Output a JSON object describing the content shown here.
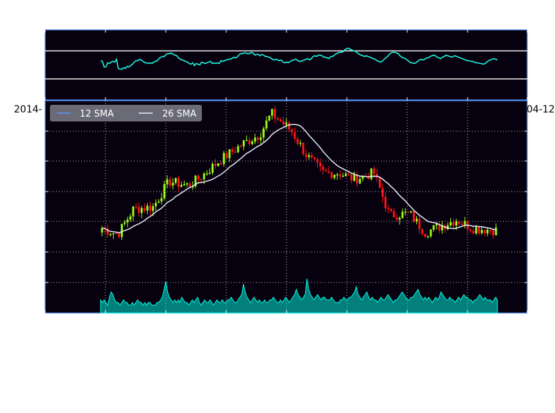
{
  "colors": {
    "figure_bg": "#ffffff",
    "axes_bg": "#07000e",
    "axes_edge": "#5998ff",
    "grid": "#ffffff",
    "rsi_line": "#1ef5dc",
    "rsi_bands": "#ffffff",
    "sma12": "#5998ff",
    "sma26": "#e1edf9",
    "candle_up": "#9eff15",
    "candle_down": "#ff1717",
    "volume_fill": "#00ffe8",
    "volume_fill_alpha": 0.5,
    "legend_bg": "#6b6b78"
  },
  "x_axis": {
    "left_label": "2014-",
    "right_label": "04-12"
  },
  "chart_data": [
    {
      "type": "line",
      "name": "rsi-panel",
      "ylim": [
        0,
        100
      ],
      "bands": [
        70,
        30
      ],
      "grid": false,
      "values": [
        56,
        55,
        47,
        47,
        53,
        52,
        54,
        55,
        54,
        58,
        45,
        44,
        44,
        46,
        45,
        48,
        47,
        49,
        51,
        54,
        56,
        56,
        58,
        57,
        55,
        53,
        53,
        52,
        53,
        52,
        54,
        55,
        56,
        59,
        61,
        62,
        62,
        65,
        66,
        66,
        67,
        65,
        64,
        63,
        60,
        58,
        57,
        56,
        55,
        54,
        52,
        51,
        53,
        49,
        52,
        51,
        50,
        54,
        53,
        52,
        53,
        54,
        55,
        52,
        53,
        52,
        53,
        52,
        56,
        55,
        56,
        57,
        58,
        58,
        59,
        61,
        60,
        61,
        64,
        66,
        66,
        67,
        67,
        66,
        66,
        68,
        67,
        64,
        65,
        65,
        63,
        65,
        64,
        62,
        62,
        61,
        60,
        58,
        57,
        58,
        57,
        56,
        57,
        54,
        53,
        54,
        53,
        55,
        56,
        57,
        58,
        57,
        55,
        55,
        56,
        57,
        58,
        59,
        57,
        59,
        62,
        63,
        62,
        64,
        64,
        63,
        61,
        61,
        60,
        59,
        62,
        62,
        64,
        66,
        67,
        68,
        68,
        69,
        72,
        73,
        74,
        72,
        71,
        70,
        69,
        67,
        65,
        64,
        63,
        62,
        63,
        62,
        61,
        60,
        59,
        58,
        56,
        55,
        54,
        55,
        58,
        60,
        62,
        65,
        67,
        68,
        68,
        67,
        66,
        63,
        61,
        60,
        59,
        57,
        55,
        53,
        53,
        52,
        53,
        55,
        57,
        58,
        57,
        58,
        60,
        60,
        62,
        63,
        64,
        63,
        61,
        60,
        59,
        61,
        62,
        64,
        63,
        62,
        61,
        62,
        63,
        62,
        61,
        60,
        59,
        58,
        57,
        56,
        56,
        55,
        55,
        54,
        53,
        53,
        52,
        52,
        51,
        52,
        54,
        56,
        57,
        58,
        59,
        58,
        57
      ]
    },
    {
      "type": "candlestick",
      "name": "price-panel",
      "ylim": [
        0,
        10
      ],
      "grid": true,
      "series": [
        {
          "name": "12 SMA",
          "values": []
        },
        {
          "name": "26 SMA",
          "values": []
        }
      ],
      "legend_position": "upper-left"
    },
    {
      "type": "area",
      "name": "volume-overlay",
      "values": [
        5,
        4,
        5,
        4,
        3,
        6,
        8,
        7,
        5,
        4,
        4,
        3,
        4,
        5,
        4,
        4,
        3,
        3,
        4,
        3,
        4,
        5,
        4,
        4,
        3,
        4,
        3,
        4,
        4,
        3,
        3,
        3,
        4,
        4,
        5,
        6,
        9,
        12,
        8,
        6,
        5,
        4,
        5,
        4,
        5,
        4,
        6,
        5,
        4,
        4,
        3,
        4,
        5,
        4,
        5,
        6,
        4,
        3,
        4,
        5,
        4,
        4,
        5,
        4,
        3,
        4,
        5,
        4,
        4,
        5,
        4,
        4,
        5,
        5,
        6,
        5,
        4,
        4,
        5,
        6,
        7,
        11,
        8,
        6,
        5,
        4,
        5,
        6,
        5,
        4,
        5,
        4,
        4,
        5,
        4,
        4,
        5,
        5,
        6,
        5,
        4,
        4,
        5,
        4,
        5,
        6,
        5,
        4,
        5,
        6,
        7,
        9,
        7,
        6,
        5,
        6,
        7,
        13,
        9,
        7,
        6,
        5,
        6,
        7,
        6,
        5,
        6,
        6,
        5,
        5,
        5,
        6,
        5,
        4,
        4,
        4,
        5,
        5,
        6,
        5,
        5,
        6,
        6,
        7,
        8,
        10,
        7,
        6,
        5,
        6,
        7,
        8,
        6,
        5,
        6,
        5,
        5,
        4,
        5,
        6,
        5,
        5,
        6,
        7,
        6,
        5,
        4,
        5,
        5,
        6,
        7,
        8,
        7,
        6,
        5,
        5,
        6,
        6,
        7,
        8,
        9,
        7,
        6,
        5,
        6,
        5,
        6,
        5,
        4,
        5,
        6,
        5,
        6,
        8,
        7,
        6,
        5,
        5,
        6,
        5,
        5,
        4,
        5,
        6,
        5,
        6,
        7,
        6,
        6,
        5,
        5,
        4,
        5,
        5,
        6,
        7,
        6,
        5,
        6,
        5,
        5,
        5,
        4,
        5,
        6,
        5
      ]
    }
  ]
}
